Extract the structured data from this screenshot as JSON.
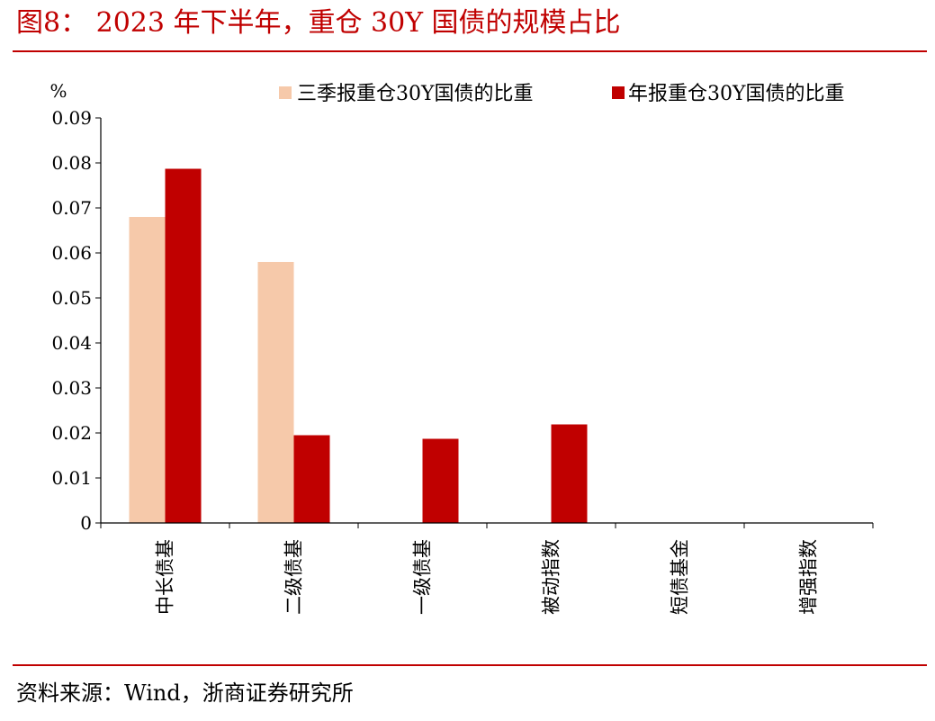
{
  "title": "图8：  2023 年下半年，重仓 30Y 国债的规模占比",
  "source": "资料来源：Wind，浙商证券研究所",
  "chart_data": {
    "type": "bar",
    "ylabel": "%",
    "ylim": [
      0,
      0.09
    ],
    "yticks": [
      "0",
      "0.01",
      "0.02",
      "0.03",
      "0.04",
      "0.05",
      "0.06",
      "0.07",
      "0.08",
      "0.09"
    ],
    "categories": [
      "中长债基",
      "二级债基",
      "一级债基",
      "被动指数",
      "短债基金",
      "增强指数"
    ],
    "series": [
      {
        "name": "三季报重仓30Y国债的比重",
        "color": "#f6c9aa",
        "values": [
          0.068,
          0.058,
          0,
          0,
          0,
          0
        ]
      },
      {
        "name": "年报重仓30Y国债的比重",
        "color": "#c00000",
        "values": [
          0.0787,
          0.0195,
          0.0187,
          0.0219,
          0,
          0
        ]
      }
    ],
    "legend_position": "top-right",
    "grid": false
  }
}
